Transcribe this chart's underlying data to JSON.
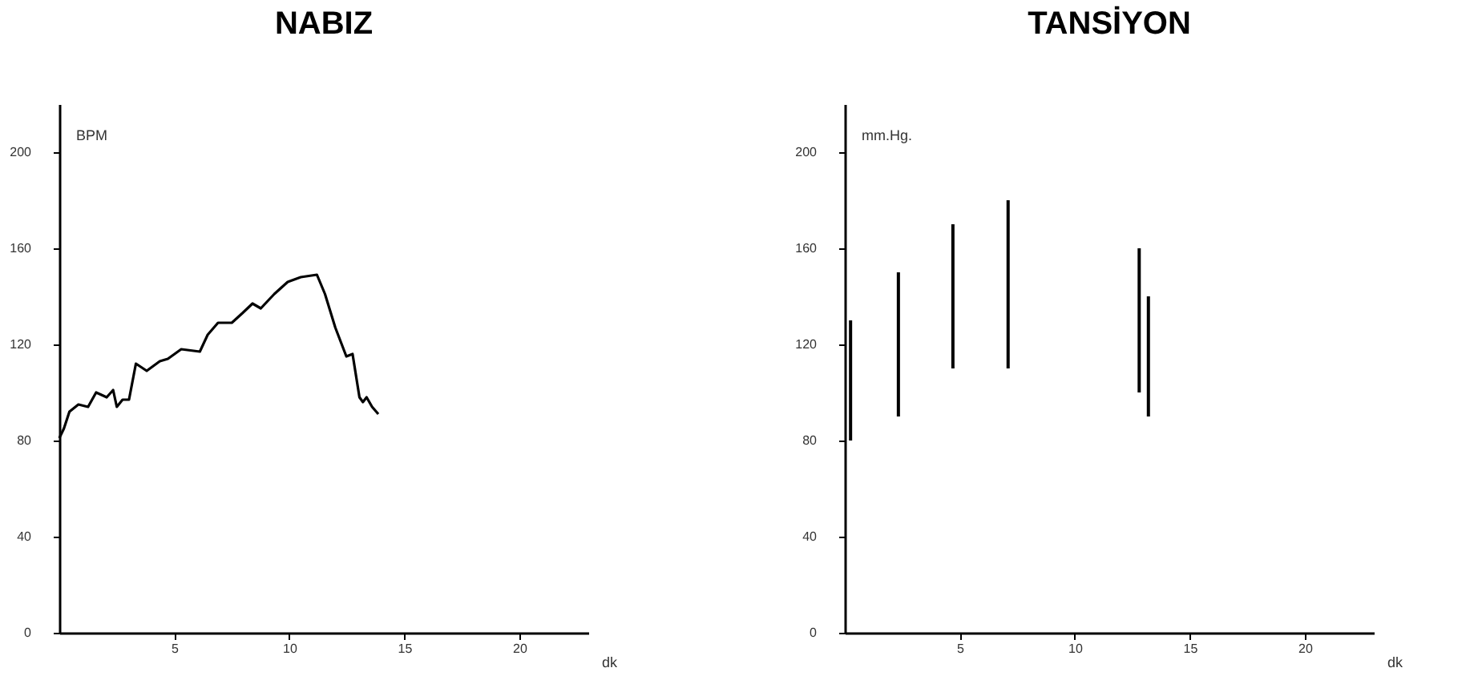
{
  "chart_data": [
    {
      "type": "line",
      "title": "NABIZ",
      "ylabel": "BPM",
      "xlabel": "dk",
      "series": [
        {
          "color": "#000000",
          "x": [
            0,
            0.2,
            0.44,
            0.83,
            1.25,
            1.6,
            2.06,
            2.34,
            2.5,
            2.75,
            3.03,
            3.33,
            3.8,
            4.37,
            4.72,
            5.3,
            6.11,
            6.45,
            6.9,
            7.5,
            7.96,
            8.4,
            8.76,
            9.35,
            9.93,
            10.5,
            11.2,
            11.55,
            12.0,
            12.48,
            12.75,
            13.05,
            13.2,
            13.36,
            13.6,
            13.87
          ],
          "values": [
            81,
            85,
            92,
            95,
            94,
            100,
            98,
            101,
            94,
            97,
            97,
            112,
            109,
            113,
            114,
            118,
            117,
            124,
            129,
            129,
            133,
            137,
            135,
            141,
            146,
            148,
            149,
            141,
            127,
            115,
            116,
            98,
            96,
            98,
            94,
            91
          ]
        }
      ],
      "xlim": [
        0,
        23
      ],
      "xticks": [
        5,
        10,
        15,
        20
      ],
      "ylim": [
        0,
        220
      ],
      "yticks": [
        0,
        40,
        80,
        120,
        160,
        200
      ],
      "grid": false
    },
    {
      "type": "bar",
      "title": "TANSİYON",
      "ylabel": "mm.Hg.",
      "xlabel": "dk",
      "x": [
        0.25,
        2.33,
        4.7,
        7.1,
        12.8,
        13.2
      ],
      "base": [
        80,
        90,
        110,
        110,
        100,
        90
      ],
      "values": [
        50,
        60,
        60,
        70,
        60,
        50
      ],
      "color": "#000000",
      "xlim": [
        0,
        23
      ],
      "xticks": [
        5,
        10,
        15,
        20
      ],
      "ylim": [
        0,
        220
      ],
      "yticks": [
        0,
        40,
        80,
        120,
        160,
        200
      ],
      "grid": false
    }
  ]
}
